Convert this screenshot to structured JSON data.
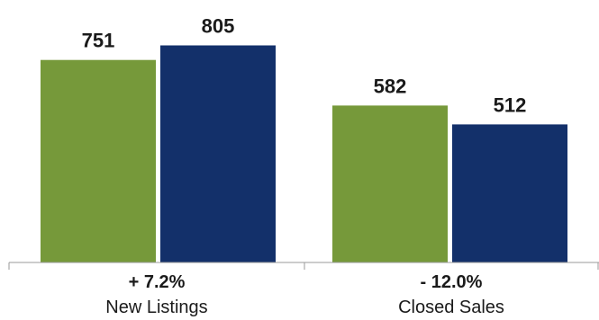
{
  "chart_data": {
    "type": "bar",
    "categories": [
      "New Listings",
      "Closed Sales"
    ],
    "change_labels": [
      "+ 7.2%",
      "- 12.0%"
    ],
    "series": [
      {
        "values": [
          751,
          582
        ],
        "color": "#76993a"
      },
      {
        "values": [
          805,
          512
        ],
        "color": "#13306a"
      }
    ],
    "ylim": [
      0,
      1000
    ],
    "grid": false,
    "legend": "none"
  }
}
